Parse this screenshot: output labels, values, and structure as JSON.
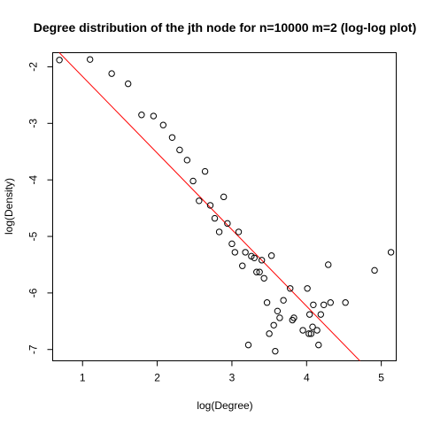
{
  "chart_data": {
    "type": "scatter",
    "title": "Degree distribution of the jth node for n=10000 m=2 (log-log plot)",
    "xlabel": "log(Degree)",
    "ylabel": "log(Density)",
    "xlim": [
      0.6,
      5.2
    ],
    "ylim": [
      -7.2,
      -1.75
    ],
    "xticks": [
      1,
      2,
      3,
      4,
      5
    ],
    "yticks": [
      -2,
      -3,
      -4,
      -5,
      -6,
      -7
    ],
    "grid": false,
    "points": [
      {
        "x": 0.69,
        "y": -1.88
      },
      {
        "x": 1.1,
        "y": -1.87
      },
      {
        "x": 1.39,
        "y": -2.12
      },
      {
        "x": 1.61,
        "y": -2.3
      },
      {
        "x": 1.79,
        "y": -2.85
      },
      {
        "x": 1.95,
        "y": -2.87
      },
      {
        "x": 2.08,
        "y": -3.03
      },
      {
        "x": 2.2,
        "y": -3.25
      },
      {
        "x": 2.3,
        "y": -3.47
      },
      {
        "x": 2.4,
        "y": -3.65
      },
      {
        "x": 2.48,
        "y": -4.02
      },
      {
        "x": 2.56,
        "y": -4.37
      },
      {
        "x": 2.64,
        "y": -3.85
      },
      {
        "x": 2.71,
        "y": -4.45
      },
      {
        "x": 2.77,
        "y": -4.68
      },
      {
        "x": 2.83,
        "y": -4.92
      },
      {
        "x": 2.89,
        "y": -4.3
      },
      {
        "x": 2.94,
        "y": -4.77
      },
      {
        "x": 3.0,
        "y": -5.13
      },
      {
        "x": 3.04,
        "y": -5.28
      },
      {
        "x": 3.09,
        "y": -4.92
      },
      {
        "x": 3.14,
        "y": -5.52
      },
      {
        "x": 3.18,
        "y": -5.28
      },
      {
        "x": 3.22,
        "y": -6.92
      },
      {
        "x": 3.26,
        "y": -5.35
      },
      {
        "x": 3.3,
        "y": -5.38
      },
      {
        "x": 3.33,
        "y": -5.63
      },
      {
        "x": 3.37,
        "y": -5.63
      },
      {
        "x": 3.4,
        "y": -5.42
      },
      {
        "x": 3.43,
        "y": -5.74
      },
      {
        "x": 3.47,
        "y": -6.17
      },
      {
        "x": 3.5,
        "y": -6.72
      },
      {
        "x": 3.53,
        "y": -5.34
      },
      {
        "x": 3.56,
        "y": -6.57
      },
      {
        "x": 3.58,
        "y": -7.03
      },
      {
        "x": 3.61,
        "y": -6.32
      },
      {
        "x": 3.64,
        "y": -6.44
      },
      {
        "x": 3.69,
        "y": -6.13
      },
      {
        "x": 3.78,
        "y": -5.92
      },
      {
        "x": 3.81,
        "y": -6.48
      },
      {
        "x": 3.83,
        "y": -6.44
      },
      {
        "x": 3.95,
        "y": -6.66
      },
      {
        "x": 4.01,
        "y": -5.92
      },
      {
        "x": 4.03,
        "y": -6.72
      },
      {
        "x": 4.04,
        "y": -6.38
      },
      {
        "x": 4.06,
        "y": -6.72
      },
      {
        "x": 4.08,
        "y": -6.6
      },
      {
        "x": 4.09,
        "y": -6.21
      },
      {
        "x": 4.14,
        "y": -6.66
      },
      {
        "x": 4.16,
        "y": -6.92
      },
      {
        "x": 4.19,
        "y": -6.38
      },
      {
        "x": 4.23,
        "y": -6.21
      },
      {
        "x": 4.29,
        "y": -5.5
      },
      {
        "x": 4.32,
        "y": -6.17
      },
      {
        "x": 4.52,
        "y": -6.17
      },
      {
        "x": 4.91,
        "y": -5.6
      },
      {
        "x": 5.13,
        "y": -5.28
      }
    ],
    "fit_line": {
      "x1": 0.6,
      "y1": -1.63,
      "x2": 4.75,
      "y2": -7.25,
      "color": "#ff0000"
    }
  }
}
